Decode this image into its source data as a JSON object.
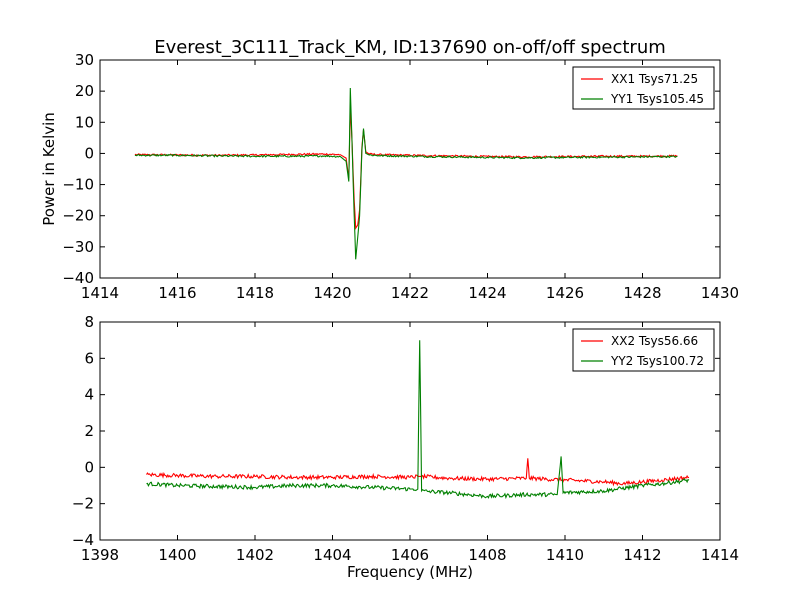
{
  "title": "Everest_3C111_Track_KM, ID:137690 on-off/off spectrum",
  "chart_data": [
    {
      "type": "line",
      "xlabel": "",
      "ylabel": "Power in Kelvin",
      "xlim": [
        1414,
        1430
      ],
      "ylim": [
        -40,
        30
      ],
      "xticks": [
        1414,
        1416,
        1418,
        1420,
        1422,
        1424,
        1426,
        1428,
        1430
      ],
      "yticks": [
        -40,
        -30,
        -20,
        -10,
        0,
        10,
        20,
        30
      ],
      "grid": false,
      "legend": "top-right",
      "series": [
        {
          "name": "XX1 Tsys71.25",
          "color": "#ff0000",
          "points": [
            [
              1414.9,
              -0.4
            ],
            [
              1416.0,
              -0.5
            ],
            [
              1417.0,
              -0.6
            ],
            [
              1418.0,
              -0.5
            ],
            [
              1419.0,
              -0.3
            ],
            [
              1419.8,
              -0.2
            ],
            [
              1420.2,
              -0.4
            ],
            [
              1420.35,
              -1.5
            ],
            [
              1420.42,
              -8.0
            ],
            [
              1420.46,
              15.0
            ],
            [
              1420.5,
              5.0
            ],
            [
              1420.56,
              -15.0
            ],
            [
              1420.6,
              -24.0
            ],
            [
              1420.65,
              -23.0
            ],
            [
              1420.7,
              -18.0
            ],
            [
              1420.76,
              2.0
            ],
            [
              1420.8,
              7.5
            ],
            [
              1420.86,
              0.5
            ],
            [
              1420.95,
              -0.2
            ],
            [
              1421.2,
              -0.4
            ],
            [
              1422.0,
              -0.6
            ],
            [
              1423.0,
              -0.8
            ],
            [
              1424.0,
              -1.0
            ],
            [
              1425.0,
              -1.1
            ],
            [
              1426.0,
              -1.0
            ],
            [
              1427.0,
              -0.9
            ],
            [
              1428.0,
              -0.9
            ],
            [
              1428.9,
              -0.8
            ]
          ]
        },
        {
          "name": "YY1 Tsys105.45",
          "color": "#008000",
          "points": [
            [
              1414.9,
              -0.6
            ],
            [
              1416.0,
              -0.6
            ],
            [
              1417.0,
              -0.8
            ],
            [
              1418.0,
              -0.9
            ],
            [
              1419.0,
              -0.9
            ],
            [
              1419.8,
              -0.8
            ],
            [
              1420.2,
              -1.0
            ],
            [
              1420.35,
              -2.5
            ],
            [
              1420.42,
              -9.0
            ],
            [
              1420.46,
              21.0
            ],
            [
              1420.5,
              5.0
            ],
            [
              1420.56,
              -20.0
            ],
            [
              1420.6,
              -34.0
            ],
            [
              1420.65,
              -27.0
            ],
            [
              1420.7,
              -20.0
            ],
            [
              1420.76,
              1.0
            ],
            [
              1420.8,
              8.0
            ],
            [
              1420.86,
              0.0
            ],
            [
              1420.95,
              -0.5
            ],
            [
              1421.2,
              -0.7
            ],
            [
              1422.0,
              -0.9
            ],
            [
              1423.0,
              -1.1
            ],
            [
              1424.0,
              -1.3
            ],
            [
              1425.0,
              -1.4
            ],
            [
              1426.0,
              -1.3
            ],
            [
              1427.0,
              -1.2
            ],
            [
              1428.0,
              -1.1
            ],
            [
              1428.9,
              -1.0
            ]
          ]
        }
      ]
    },
    {
      "type": "line",
      "xlabel": "Frequency (MHz)",
      "ylabel": "",
      "xlim": [
        1398,
        1414
      ],
      "ylim": [
        -4,
        8
      ],
      "xticks": [
        1398,
        1400,
        1402,
        1404,
        1406,
        1408,
        1410,
        1412,
        1414
      ],
      "yticks": [
        -4,
        -2,
        0,
        2,
        4,
        6,
        8
      ],
      "grid": false,
      "legend": "top-right",
      "series": [
        {
          "name": "XX2 Tsys56.66",
          "color": "#ff0000",
          "points": [
            [
              1399.2,
              -0.4
            ],
            [
              1400.0,
              -0.45
            ],
            [
              1401.0,
              -0.5
            ],
            [
              1402.0,
              -0.5
            ],
            [
              1403.0,
              -0.55
            ],
            [
              1404.0,
              -0.55
            ],
            [
              1405.0,
              -0.5
            ],
            [
              1406.0,
              -0.55
            ],
            [
              1406.2,
              -0.5
            ],
            [
              1406.3,
              -0.5
            ],
            [
              1407.0,
              -0.6
            ],
            [
              1408.0,
              -0.65
            ],
            [
              1409.0,
              -0.6
            ],
            [
              1409.04,
              0.5
            ],
            [
              1409.08,
              -0.6
            ],
            [
              1410.0,
              -0.7
            ],
            [
              1411.0,
              -0.8
            ],
            [
              1411.5,
              -0.9
            ],
            [
              1412.0,
              -0.8
            ],
            [
              1412.5,
              -0.7
            ],
            [
              1413.2,
              -0.55
            ]
          ]
        },
        {
          "name": "YY2 Tsys100.72",
          "color": "#008000",
          "points": [
            [
              1399.2,
              -0.9
            ],
            [
              1400.0,
              -1.0
            ],
            [
              1401.0,
              -1.05
            ],
            [
              1402.0,
              -1.1
            ],
            [
              1403.0,
              -1.0
            ],
            [
              1404.0,
              -1.0
            ],
            [
              1405.0,
              -1.1
            ],
            [
              1406.0,
              -1.2
            ],
            [
              1406.2,
              -1.2
            ],
            [
              1406.25,
              7.0
            ],
            [
              1406.3,
              -1.3
            ],
            [
              1407.0,
              -1.4
            ],
            [
              1408.0,
              -1.6
            ],
            [
              1409.0,
              -1.5
            ],
            [
              1409.8,
              -1.5
            ],
            [
              1409.9,
              0.6
            ],
            [
              1409.95,
              -1.4
            ],
            [
              1411.0,
              -1.3
            ],
            [
              1412.0,
              -1.0
            ],
            [
              1412.5,
              -0.9
            ],
            [
              1413.2,
              -0.7
            ]
          ]
        }
      ]
    }
  ]
}
